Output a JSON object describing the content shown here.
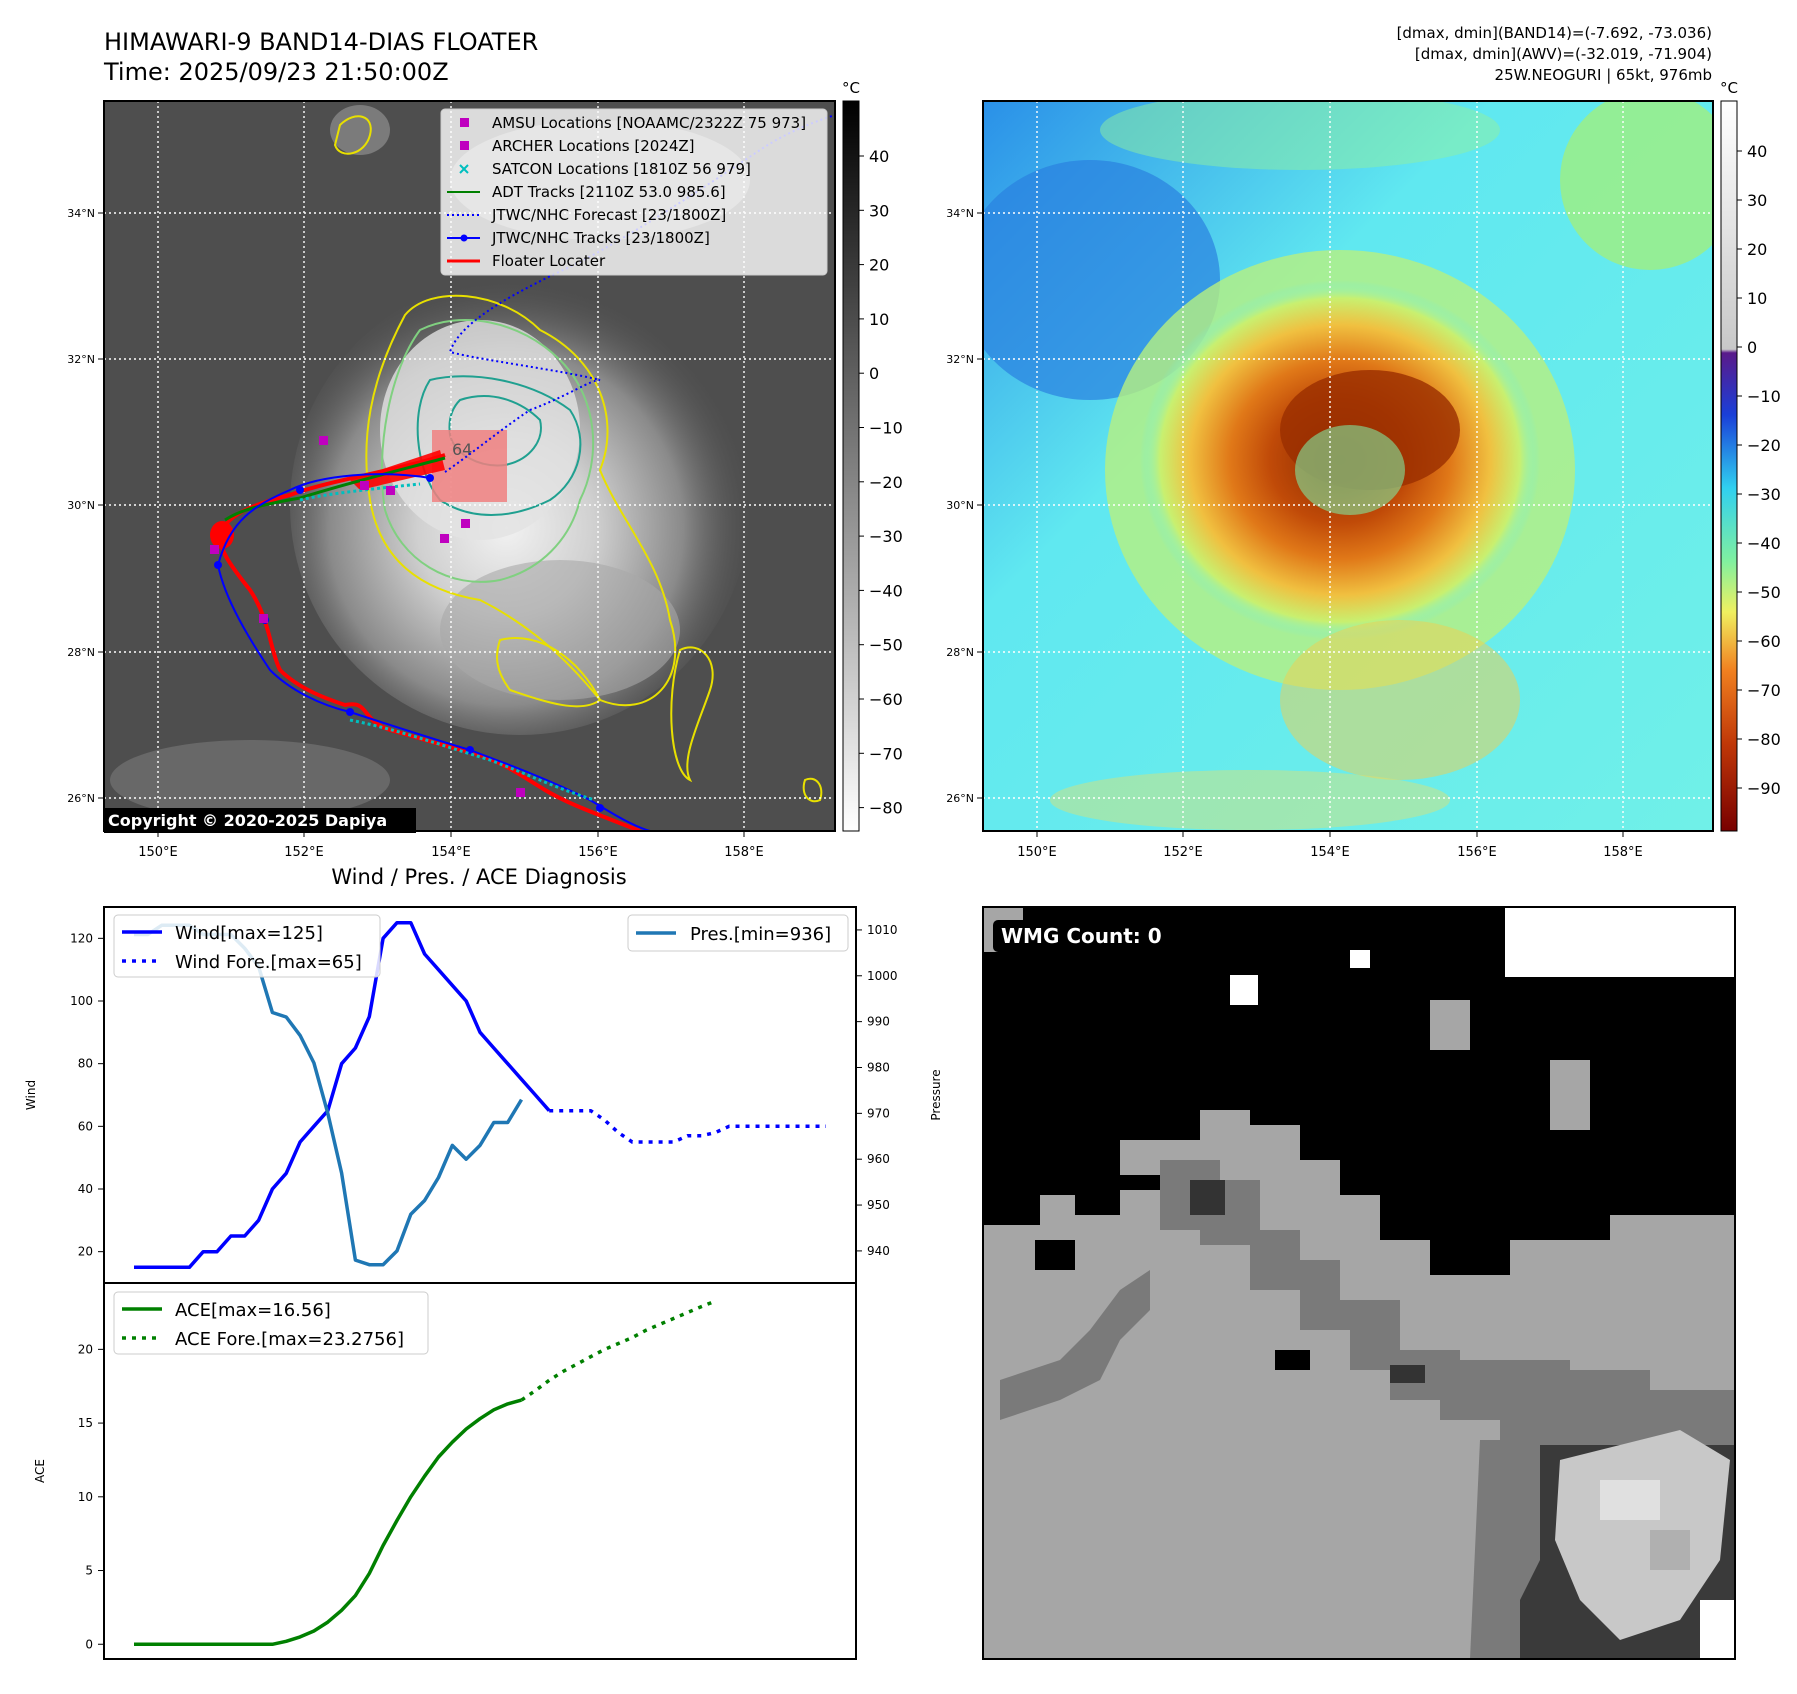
{
  "header": {
    "title_line1": "HIMAWARI-9 BAND14-DIAS FLOATER",
    "title_line2": "Time: 2025/09/23 21:50:00Z",
    "stats_line1": "[dmax, dmin](BAND14)=(-7.692, -73.036)",
    "stats_line2": "[dmax, dmin](AWV)=(-32.019, -71.904)",
    "stats_line3": "25W.NEOGURI | 65kt, 976mb"
  },
  "satellite_map": {
    "lon_ticks": [
      "150°E",
      "152°E",
      "154°E",
      "156°E",
      "158°E"
    ],
    "lat_ticks": [
      "34°N",
      "32°N",
      "30°N",
      "28°N",
      "26°N"
    ],
    "copyright": "Copyright © 2020-2025 Dapiya",
    "floater_label": "64",
    "legend": [
      {
        "label": "AMSU Locations [NOAAMC/2322Z 75 973]",
        "color": "#bf00bf",
        "style": "square"
      },
      {
        "label": "ARCHER Locations [2024Z]",
        "color": "#bf00bf",
        "style": "square"
      },
      {
        "label": "SATCON Locations [1810Z 56 979]",
        "color": "#00bfbf",
        "style": "x"
      },
      {
        "label": "ADT Tracks [2110Z 53.0 985.6]",
        "color": "#008000",
        "style": "line"
      },
      {
        "label": "JTWC/NHC Forecast [23/1800Z]",
        "color": "#0000ff",
        "style": "dotted"
      },
      {
        "label": "JTWC/NHC Tracks [23/1800Z]",
        "color": "#0000ff",
        "style": "line-dot"
      },
      {
        "label": "Floater Locater",
        "color": "#ff0000",
        "style": "line"
      }
    ],
    "colorbar_unit": "°C",
    "colorbar_ticks": [
      "40",
      "30",
      "20",
      "10",
      "0",
      "−10",
      "−20",
      "−30",
      "−40",
      "−50",
      "−60",
      "−70",
      "−80"
    ]
  },
  "awv_map": {
    "lon_ticks": [
      "150°E",
      "152°E",
      "154°E",
      "156°E",
      "158°E"
    ],
    "lat_ticks": [
      "34°N",
      "32°N",
      "30°N",
      "28°N",
      "26°N"
    ],
    "colorbar_unit": "°C",
    "colorbar_ticks": [
      "40",
      "30",
      "20",
      "10",
      "0",
      "−10",
      "−20",
      "−30",
      "−40",
      "−50",
      "−60",
      "−70",
      "−80",
      "−90"
    ]
  },
  "wmg_panel": {
    "label": "WMG Count: 0"
  },
  "chart_data": [
    {
      "type": "line",
      "title": "Wind / Pres. / ACE Diagnosis",
      "ylabel": "Wind",
      "y2label": "Pressure",
      "ylim": [
        10,
        130
      ],
      "y2lim": [
        933,
        1015
      ],
      "yticks": [
        20,
        40,
        60,
        80,
        100,
        120
      ],
      "y2ticks": [
        940,
        950,
        960,
        970,
        980,
        990,
        1000,
        1010
      ],
      "x_index_range": [
        0,
        50
      ],
      "series": [
        {
          "name": "Wind[max=125]",
          "color": "#0000ff",
          "style": "solid",
          "axis": "left",
          "values": [
            15,
            15,
            15,
            15,
            15,
            20,
            20,
            25,
            25,
            30,
            40,
            45,
            55,
            60,
            65,
            80,
            85,
            95,
            120,
            125,
            125,
            115,
            110,
            105,
            100,
            90,
            85,
            80,
            75,
            70,
            65
          ]
        },
        {
          "name": "Wind Fore.[max=65]",
          "color": "#0000ff",
          "style": "dotted",
          "axis": "left",
          "x_offset": 30,
          "values": [
            65,
            65,
            65,
            65,
            62,
            58,
            55,
            55,
            55,
            55,
            57,
            57,
            58,
            60,
            60,
            60,
            60,
            60,
            60,
            60,
            60
          ]
        },
        {
          "name": "Pres.[min=936]",
          "color": "#1f77b4",
          "style": "solid",
          "axis": "right",
          "values": [
            1009,
            1009,
            1011,
            1011,
            1011,
            1009,
            1009,
            1009,
            1006,
            1002,
            992,
            991,
            987,
            981,
            970,
            957,
            938,
            937,
            937,
            940,
            948,
            951,
            956,
            963,
            960,
            963,
            968,
            968,
            973
          ]
        }
      ]
    },
    {
      "type": "line",
      "ylabel": "ACE",
      "ylim": [
        -1,
        24.5
      ],
      "yticks": [
        0,
        5,
        10,
        15,
        20
      ],
      "x_index_range": [
        0,
        50
      ],
      "series": [
        {
          "name": "ACE[max=16.56]",
          "color": "#008000",
          "style": "solid",
          "values": [
            0,
            0,
            0,
            0,
            0,
            0,
            0,
            0,
            0,
            0,
            0,
            0.2,
            0.5,
            0.9,
            1.5,
            2.3,
            3.3,
            4.8,
            6.7,
            8.4,
            10.0,
            11.4,
            12.7,
            13.7,
            14.6,
            15.3,
            15.9,
            16.3,
            16.56
          ]
        },
        {
          "name": "ACE Fore.[max=23.2756]",
          "color": "#008000",
          "style": "dotted",
          "x_offset": 28,
          "values": [
            16.56,
            17.2,
            17.9,
            18.5,
            19.0,
            19.5,
            20.0,
            20.4,
            20.8,
            21.3,
            21.7,
            22.1,
            22.5,
            22.9,
            23.2756
          ]
        }
      ]
    }
  ]
}
